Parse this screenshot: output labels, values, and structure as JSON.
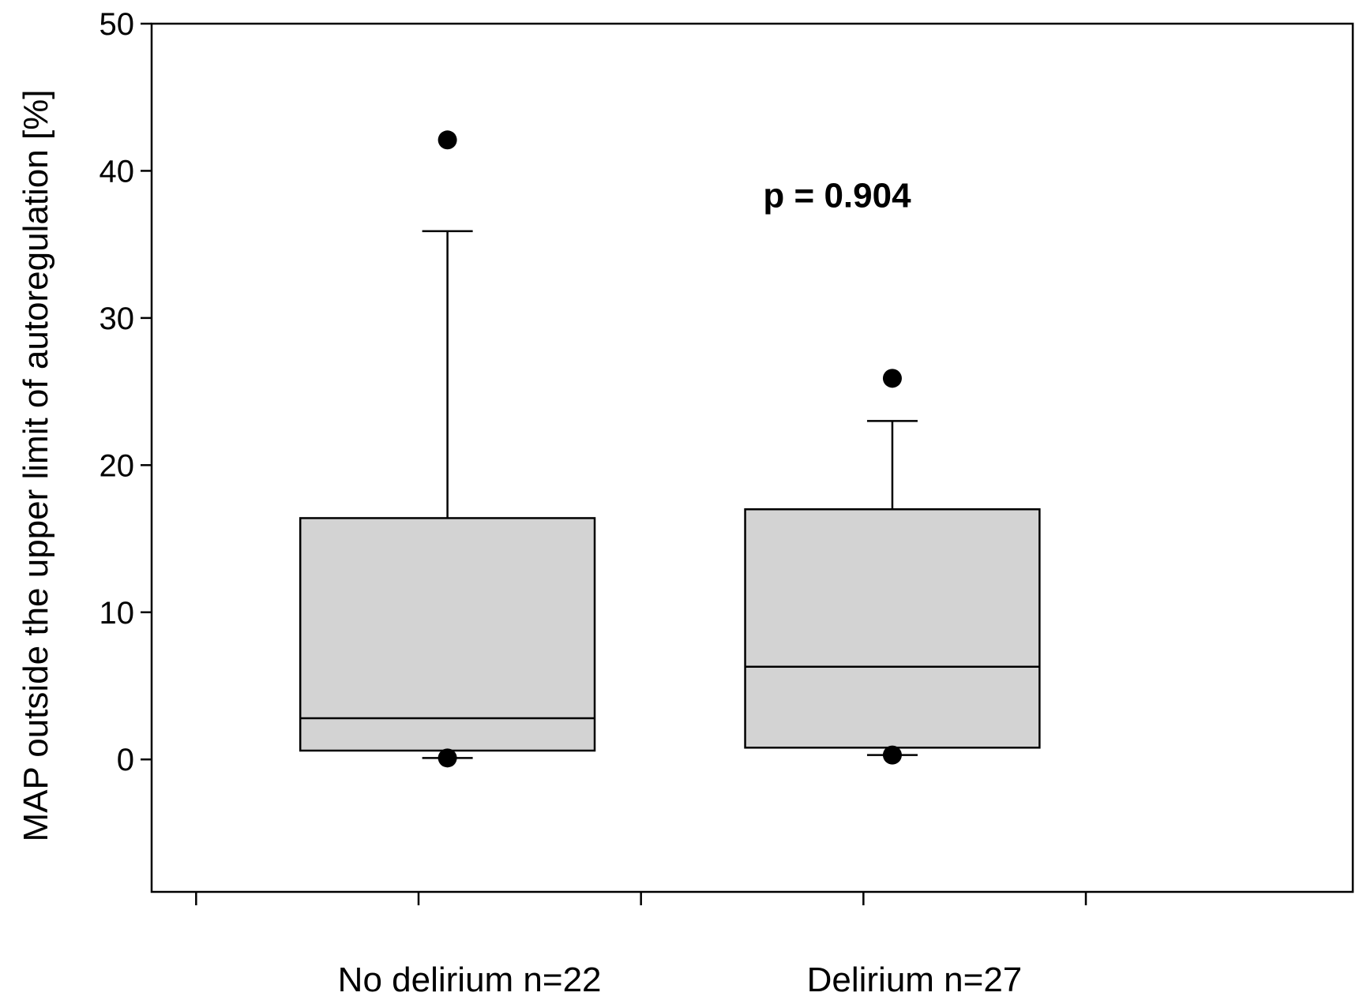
{
  "chart_data": {
    "type": "boxplot",
    "ylabel": "MAP outside the upper limit of autoregulation [%]",
    "xlabel": "",
    "ylim": [
      -9,
      50
    ],
    "yticks": [
      0,
      10,
      20,
      30,
      40,
      50
    ],
    "ytick_labels": [
      "0",
      "10",
      "20",
      "30",
      "40",
      "50"
    ],
    "grid": false,
    "annotation": "p = 0.904",
    "box_fill": "#d3d3d3",
    "categories": [
      "No delirium n=22",
      "Delirium n=27"
    ],
    "boxes": [
      {
        "category": "No delirium n=22",
        "whisker_low": 0.1,
        "q1": 0.6,
        "median": 2.8,
        "q3": 16.4,
        "whisker_high": 35.9,
        "outliers": [
          42.1,
          0.1
        ]
      },
      {
        "category": "Delirium n=27",
        "whisker_low": 0.3,
        "q1": 0.8,
        "median": 6.3,
        "q3": 17.0,
        "whisker_high": 23.0,
        "outliers": [
          25.9,
          0.3
        ]
      }
    ]
  }
}
